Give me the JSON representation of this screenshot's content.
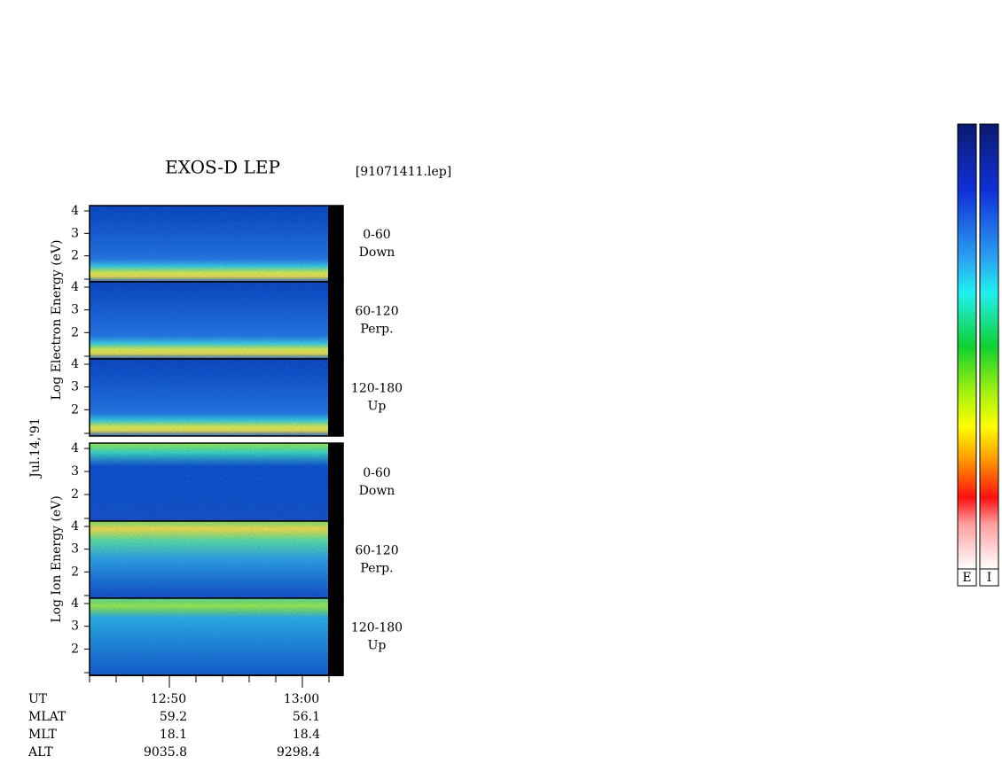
{
  "header": {
    "title": "EXOS-D LEP",
    "file": "[91071411.lep]"
  },
  "date": "Jul.14,'91",
  "axis_labels": {
    "electron": "Log Electron Energy (eV)",
    "ion": "Log Ion Energy (eV)"
  },
  "yticks": [
    2,
    3,
    4
  ],
  "panels": [
    {
      "angle": "0-60",
      "direction": "Down"
    },
    {
      "angle": "60-120",
      "direction": "Perp."
    },
    {
      "angle": "120-180",
      "direction": "Up"
    },
    {
      "angle": "0-60",
      "direction": "Down"
    },
    {
      "angle": "60-120",
      "direction": "Perp."
    },
    {
      "angle": "120-180",
      "direction": "Up"
    }
  ],
  "time_ticks": [
    "12:50",
    "13:00"
  ],
  "table": {
    "rows": [
      [
        "UT"
      ],
      [
        "MLAT",
        "59.2",
        "56.1"
      ],
      [
        "MLT",
        "18.1",
        "18.4"
      ],
      [
        "ALT",
        "9035.8",
        "9298.4"
      ]
    ]
  },
  "colorbar_labels": [
    "E",
    "I"
  ]
}
